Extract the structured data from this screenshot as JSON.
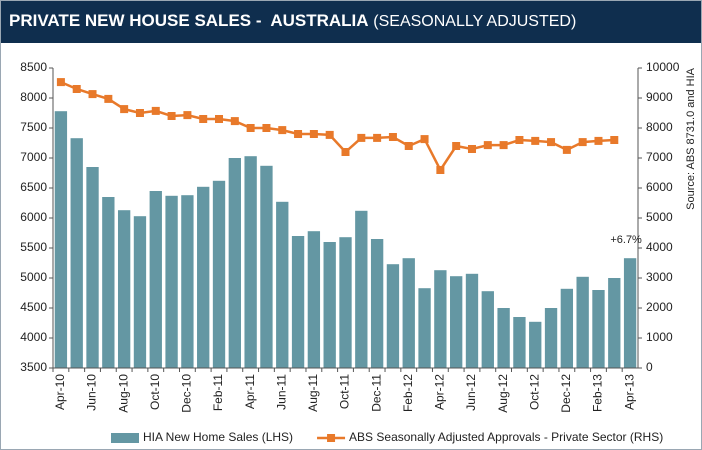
{
  "chart_data": {
    "type": "bar",
    "title": "PRIVATE NEW HOUSE SALES -  AUSTRALIA",
    "subtitle": "(SEASONALLY ADJUSTED)",
    "source": "Source: ABS 8731.0 and HIA",
    "annotation": "+6.7%",
    "categories": [
      "Apr-10",
      null,
      "Jun-10",
      null,
      "Aug-10",
      null,
      "Oct-10",
      null,
      "Dec-10",
      null,
      "Feb-11",
      null,
      "Apr-11",
      null,
      "Jun-11",
      null,
      "Aug-11",
      null,
      "Oct-11",
      null,
      "Dec-11",
      null,
      "Feb-12",
      null,
      "Apr-12",
      null,
      "Jun-12",
      null,
      "Aug-12",
      null,
      "Oct-12",
      null,
      "Dec-12",
      null,
      "Feb-13",
      null,
      "Apr-13"
    ],
    "series": [
      {
        "name": "HIA New Home Sales (LHS)",
        "color": "#6497a3",
        "type": "bar",
        "values": [
          7780,
          7330,
          6850,
          6350,
          6130,
          6030,
          6450,
          6370,
          6380,
          6520,
          6620,
          7000,
          7030,
          6870,
          6270,
          5700,
          5780,
          5600,
          5680,
          6120,
          5650,
          5230,
          5330,
          4830,
          5130,
          5030,
          5070,
          4780,
          4500,
          4350,
          4270,
          4500,
          4820,
          5020,
          4800,
          5000,
          5330
        ]
      },
      {
        "name": "ABS Seasonally Adjusted Approvals - Private Sector (RHS)",
        "color": "#e8792a",
        "type": "line",
        "axis": "y2",
        "values": [
          9530,
          9300,
          9130,
          8970,
          8630,
          8500,
          8570,
          8400,
          8430,
          8300,
          8300,
          8230,
          8000,
          8000,
          7930,
          7800,
          7800,
          7770,
          7200,
          7670,
          7670,
          7700,
          7400,
          7630,
          6600,
          7400,
          7300,
          7430,
          7430,
          7600,
          7570,
          7530,
          7270,
          7530,
          7570,
          7600,
          null
        ]
      }
    ],
    "ylim": [
      3500,
      8500
    ],
    "yticks": [
      3500,
      4000,
      4500,
      5000,
      5500,
      6000,
      6500,
      7000,
      7500,
      8000,
      8500
    ],
    "y2lim": [
      0,
      10000
    ],
    "y2ticks": [
      0,
      1000,
      2000,
      3000,
      4000,
      5000,
      6000,
      7000,
      8000,
      9000,
      10000
    ],
    "grid": false,
    "legend": "bottom"
  }
}
